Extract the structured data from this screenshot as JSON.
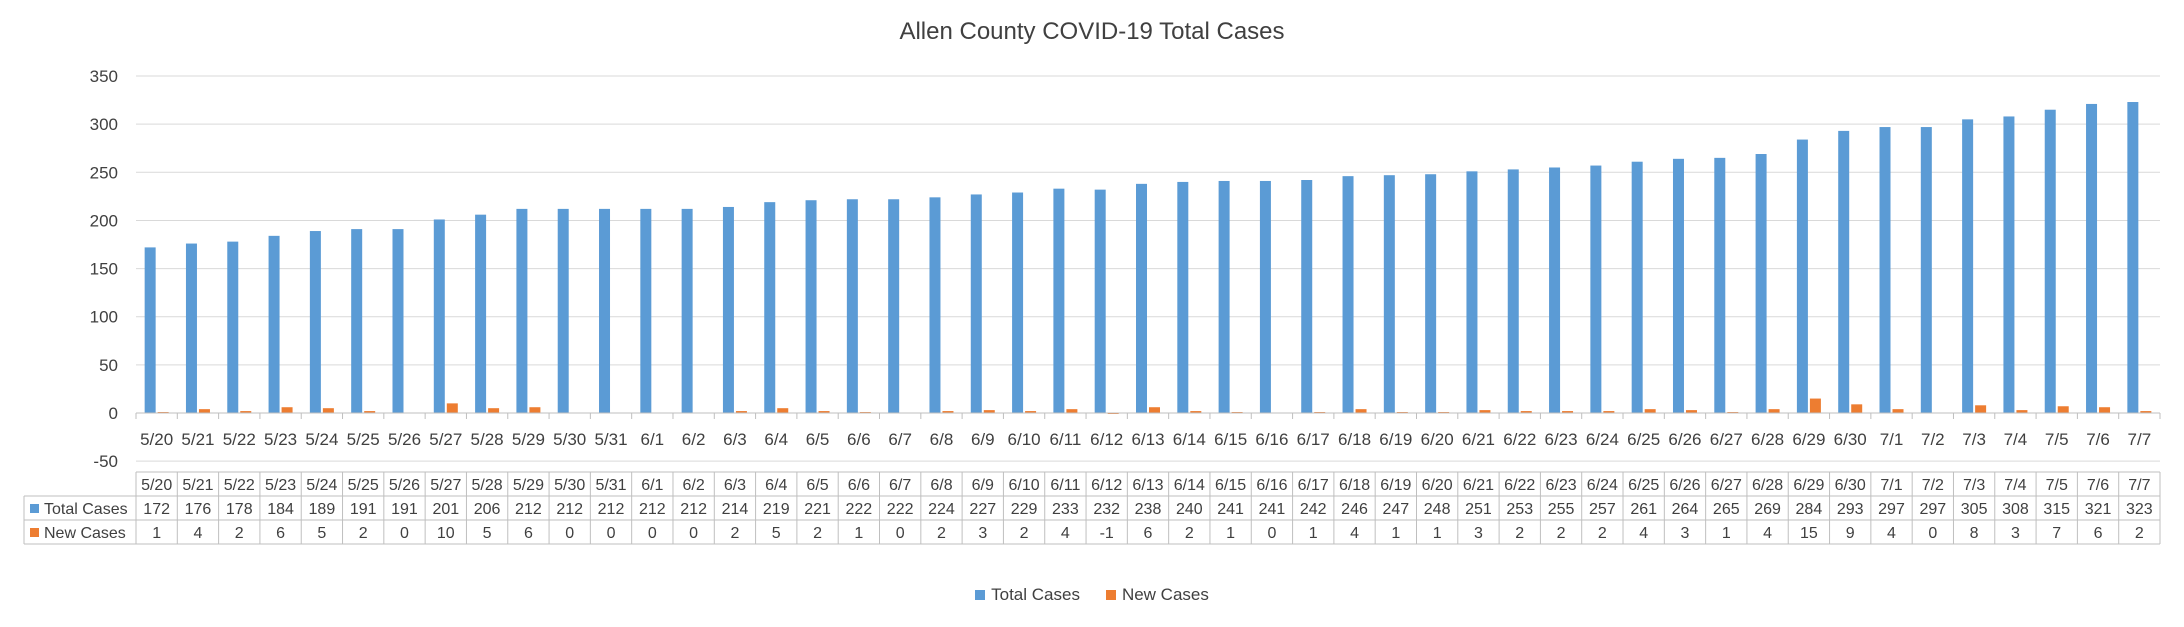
{
  "chart_data": {
    "type": "bar",
    "title": "Allen County COVID-19 Total Cases",
    "categories": [
      "5/20",
      "5/21",
      "5/22",
      "5/23",
      "5/24",
      "5/25",
      "5/26",
      "5/27",
      "5/28",
      "5/29",
      "5/30",
      "5/31",
      "6/1",
      "6/2",
      "6/3",
      "6/4",
      "6/5",
      "6/6",
      "6/7",
      "6/8",
      "6/9",
      "6/10",
      "6/11",
      "6/12",
      "6/13",
      "6/14",
      "6/15",
      "6/16",
      "6/17",
      "6/18",
      "6/19",
      "6/20",
      "6/21",
      "6/22",
      "6/23",
      "6/24",
      "6/25",
      "6/26",
      "6/27",
      "6/28",
      "6/29",
      "6/30",
      "7/1",
      "7/2",
      "7/3",
      "7/4",
      "7/5",
      "7/6",
      "7/7"
    ],
    "series": [
      {
        "name": "Total Cases",
        "color": "#5b9bd5",
        "values": [
          172,
          176,
          178,
          184,
          189,
          191,
          191,
          201,
          206,
          212,
          212,
          212,
          212,
          212,
          214,
          219,
          221,
          222,
          222,
          224,
          227,
          229,
          233,
          232,
          238,
          240,
          241,
          241,
          242,
          246,
          247,
          248,
          251,
          253,
          255,
          257,
          261,
          264,
          265,
          269,
          284,
          293,
          297,
          297,
          305,
          308,
          315,
          321,
          323
        ]
      },
      {
        "name": "New Cases",
        "color": "#ed7d31",
        "values": [
          1,
          4,
          2,
          6,
          5,
          2,
          0,
          10,
          5,
          6,
          0,
          0,
          0,
          0,
          2,
          5,
          2,
          1,
          0,
          2,
          3,
          2,
          4,
          -1,
          6,
          2,
          1,
          0,
          1,
          4,
          1,
          1,
          3,
          2,
          2,
          2,
          4,
          3,
          1,
          4,
          15,
          9,
          4,
          0,
          8,
          3,
          7,
          6,
          2
        ]
      }
    ],
    "yticks": [
      "350",
      "300",
      "250",
      "200",
      "150",
      "100",
      "50",
      "0",
      "-50"
    ],
    "ylim": [
      -50,
      350
    ],
    "grid": true,
    "legend": "bottom",
    "data_table": true
  }
}
